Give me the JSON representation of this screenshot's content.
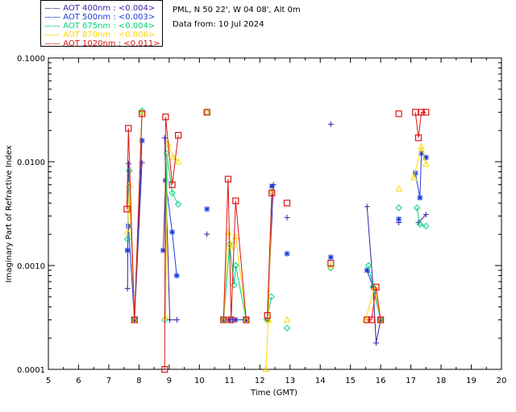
{
  "chart_data": {
    "type": "scatter",
    "title": "PML, N 50 22', W 04 08', Alt 0m",
    "subtitle": "Data from: 10 Jul 2024",
    "xlabel": "Time (GMT)",
    "ylabel": "Imaginary Part of Refractive Index",
    "xlim": [
      5,
      20
    ],
    "ylim": [
      0.0001,
      0.1
    ],
    "yscale": "log",
    "xticks": [
      "5",
      "6",
      "7",
      "8",
      "9",
      "10",
      "11",
      "12",
      "13",
      "14",
      "15",
      "16",
      "17",
      "18",
      "19",
      "20"
    ],
    "yticks": [
      "0.0001",
      "0.0010",
      "0.0100",
      "0.1000"
    ],
    "series": [
      {
        "name": "AOT  400nm : <0.004>",
        "color": "#3c1fa5",
        "marker": "plus",
        "points": [
          [
            7.62,
            0.0006
          ],
          [
            7.65,
            0.0096
          ],
          [
            7.85,
            0.0003
          ],
          [
            8.1,
            0.0098
          ],
          [
            8.85,
            0.017
          ],
          [
            9.02,
            0.0003
          ],
          [
            9.25,
            0.0003
          ],
          [
            10.25,
            0.002
          ],
          [
            10.8,
            0.0003
          ],
          [
            11.0,
            0.0003
          ],
          [
            11.1,
            0.0003
          ],
          [
            11.55,
            0.0003
          ],
          [
            12.25,
            0.0003
          ],
          [
            12.45,
            0.006
          ],
          [
            12.9,
            0.0029
          ],
          [
            14.35,
            0.023
          ],
          [
            15.55,
            0.0037
          ],
          [
            15.75,
            0.00062
          ],
          [
            15.85,
            0.00018
          ],
          [
            16.0,
            0.0003
          ],
          [
            16.6,
            0.0026
          ],
          [
            17.25,
            0.0026
          ],
          [
            17.5,
            0.0031
          ]
        ]
      },
      {
        "name": "AOT  500nm : <0.003>",
        "color": "#1c3cdc",
        "marker": "star",
        "points": [
          [
            7.62,
            0.0014
          ],
          [
            7.65,
            0.0024
          ],
          [
            7.85,
            0.0003
          ],
          [
            8.1,
            0.016
          ],
          [
            8.8,
            0.0014
          ],
          [
            8.88,
            0.0066
          ],
          [
            9.1,
            0.0021
          ],
          [
            9.25,
            0.0008
          ],
          [
            10.25,
            0.0035
          ],
          [
            10.8,
            0.0003
          ],
          [
            11.0,
            0.0003
          ],
          [
            11.2,
            0.0003
          ],
          [
            11.55,
            0.0003
          ],
          [
            12.25,
            0.0003
          ],
          [
            12.4,
            0.0058
          ],
          [
            12.9,
            0.0013
          ],
          [
            14.35,
            0.0012
          ],
          [
            15.55,
            0.0009
          ],
          [
            15.75,
            0.00062
          ],
          [
            16.0,
            0.0003
          ],
          [
            16.6,
            0.0028
          ],
          [
            17.15,
            0.0078
          ],
          [
            17.3,
            0.0045
          ],
          [
            17.35,
            0.012
          ],
          [
            17.5,
            0.011
          ]
        ]
      },
      {
        "name": "AOT  675nm : <0.004>",
        "color": "#00d27a",
        "marker": "diamond",
        "points": [
          [
            7.62,
            0.0018
          ],
          [
            7.68,
            0.0082
          ],
          [
            7.85,
            0.0003
          ],
          [
            8.1,
            0.031
          ],
          [
            8.85,
            0.0003
          ],
          [
            8.92,
            0.012
          ],
          [
            9.1,
            0.005
          ],
          [
            9.3,
            0.0039
          ],
          [
            10.25,
            0.03
          ],
          [
            10.8,
            0.0003
          ],
          [
            11.0,
            0.0016
          ],
          [
            11.15,
            0.00065
          ],
          [
            11.2,
            0.001
          ],
          [
            11.55,
            0.0003
          ],
          [
            12.25,
            0.0003
          ],
          [
            12.38,
            0.0005
          ],
          [
            12.9,
            0.00025
          ],
          [
            14.35,
            0.00095
          ],
          [
            15.6,
            0.001
          ],
          [
            15.75,
            0.00062
          ],
          [
            16.0,
            0.0003
          ],
          [
            16.6,
            0.0036
          ],
          [
            17.2,
            0.0036
          ],
          [
            17.3,
            0.0025
          ],
          [
            17.5,
            0.0024
          ]
        ]
      },
      {
        "name": "AOT  870nm : <0.006>",
        "color": "#ffd700",
        "marker": "triangle",
        "points": [
          [
            7.62,
            0.0021
          ],
          [
            7.68,
            0.006
          ],
          [
            7.85,
            0.0003
          ],
          [
            8.1,
            0.03
          ],
          [
            8.88,
            0.00032
          ],
          [
            8.95,
            0.015
          ],
          [
            9.15,
            0.011
          ],
          [
            9.3,
            0.01
          ],
          [
            10.25,
            0.03
          ],
          [
            10.8,
            0.0003
          ],
          [
            10.95,
            0.0021
          ],
          [
            11.05,
            0.0015
          ],
          [
            11.2,
            0.0019
          ],
          [
            11.55,
            0.0003
          ],
          [
            12.2,
            0.0001
          ],
          [
            12.28,
            0.0003
          ],
          [
            12.4,
            0.0052
          ],
          [
            12.9,
            0.0003
          ],
          [
            14.35,
            0.001
          ],
          [
            15.5,
            0.0003
          ],
          [
            15.8,
            0.00062
          ],
          [
            16.0,
            0.0003
          ],
          [
            16.6,
            0.0055
          ],
          [
            17.1,
            0.007
          ],
          [
            17.35,
            0.014
          ],
          [
            17.5,
            0.0095
          ]
        ]
      },
      {
        "name": "AOT 1020nm : <0.011>",
        "color": "#dc1414",
        "marker": "square",
        "points": [
          [
            7.6,
            0.0035
          ],
          [
            7.65,
            0.021
          ],
          [
            7.85,
            0.0003
          ],
          [
            8.1,
            0.029
          ],
          [
            8.85,
            0.0001
          ],
          [
            8.88,
            0.027
          ],
          [
            9.1,
            0.006
          ],
          [
            9.3,
            0.018
          ],
          [
            10.25,
            0.03
          ],
          [
            10.8,
            0.0003
          ],
          [
            10.95,
            0.0068
          ],
          [
            11.05,
            0.0003
          ],
          [
            11.2,
            0.0042
          ],
          [
            11.55,
            0.0003
          ],
          [
            12.25,
            0.00033
          ],
          [
            12.4,
            0.005
          ],
          [
            12.9,
            0.004
          ],
          [
            14.35,
            0.00105
          ],
          [
            15.55,
            0.0003
          ],
          [
            15.7,
            0.0003
          ],
          [
            15.85,
            0.00062
          ],
          [
            16.0,
            0.0003
          ],
          [
            16.6,
            0.029
          ],
          [
            17.15,
            0.03
          ],
          [
            17.25,
            0.017
          ],
          [
            17.35,
            0.03
          ],
          [
            17.5,
            0.03
          ]
        ]
      }
    ]
  }
}
